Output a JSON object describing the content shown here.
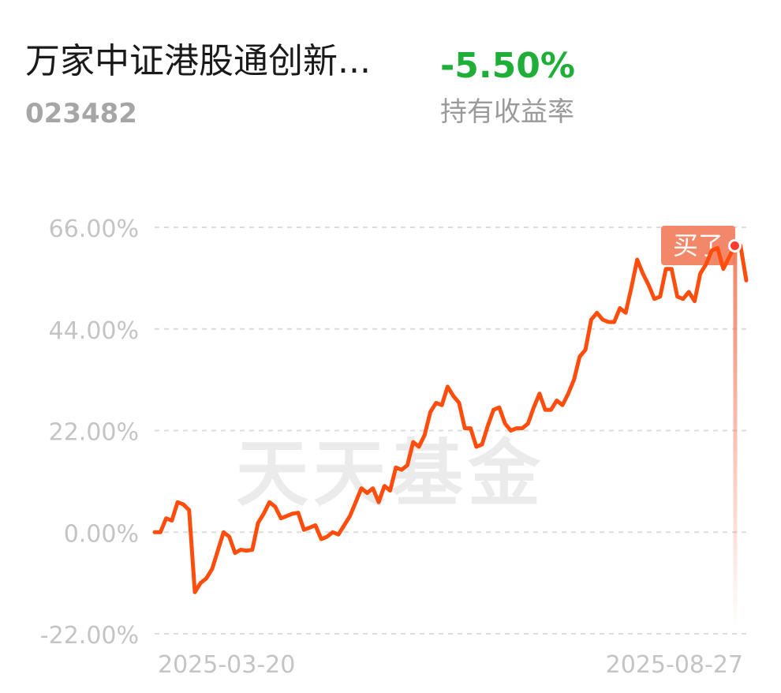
{
  "header": {
    "fund_name": "万家中证港股通创新...",
    "fund_code": "023482",
    "return_value": "-5.50%",
    "return_label": "持有收益率"
  },
  "watermark": "天天基金",
  "buy_marker": {
    "label": "买了"
  },
  "colors": {
    "line": "#ff4d0d",
    "positive": "#1fae37",
    "marker": "#f27a5a"
  },
  "chart_data": {
    "type": "line",
    "title": "",
    "xlabel": "",
    "ylabel": "",
    "ylim": [
      -22,
      66
    ],
    "y_ticks": [
      66,
      44,
      22,
      0,
      -22
    ],
    "y_tick_labels": [
      "66.00%",
      "44.00%",
      "22.00%",
      "0.00%",
      "-22.00%"
    ],
    "x_tick_labels": [
      "2025-03-20",
      "2025-08-27"
    ],
    "grid": true,
    "legend": "none",
    "series": [
      {
        "values": [
          0,
          0,
          3,
          2.5,
          6.5,
          6,
          4.8,
          -13,
          -11,
          -10,
          -8,
          -4,
          0,
          -1,
          -4.5,
          -3.8,
          -4,
          -3.8,
          2,
          4,
          6.5,
          5.5,
          3,
          3.5,
          4,
          4.2,
          0.5,
          1,
          1.5,
          -1.5,
          -1,
          0,
          -0.5,
          1.5,
          3.5,
          6.5,
          9.5,
          8.5,
          9.5,
          6.5,
          10,
          9,
          14,
          13.5,
          14.5,
          19.5,
          18.5,
          21,
          26,
          28,
          27.5,
          31.5,
          29.5,
          28,
          22.5,
          22.5,
          18.5,
          19,
          23,
          26.5,
          27,
          23.5,
          22,
          22.5,
          22.5,
          23.5,
          27,
          30,
          26.5,
          26.5,
          28.5,
          27.5,
          30,
          33,
          38,
          39.5,
          46,
          47.5,
          46,
          45.5,
          45.5,
          48.5,
          47.5,
          53,
          59,
          56,
          53.5,
          50.5,
          51,
          57,
          57,
          51,
          50.5,
          52,
          50,
          56,
          58,
          61,
          61.5,
          57,
          59.5,
          62,
          62,
          54.5
        ]
      }
    ]
  }
}
